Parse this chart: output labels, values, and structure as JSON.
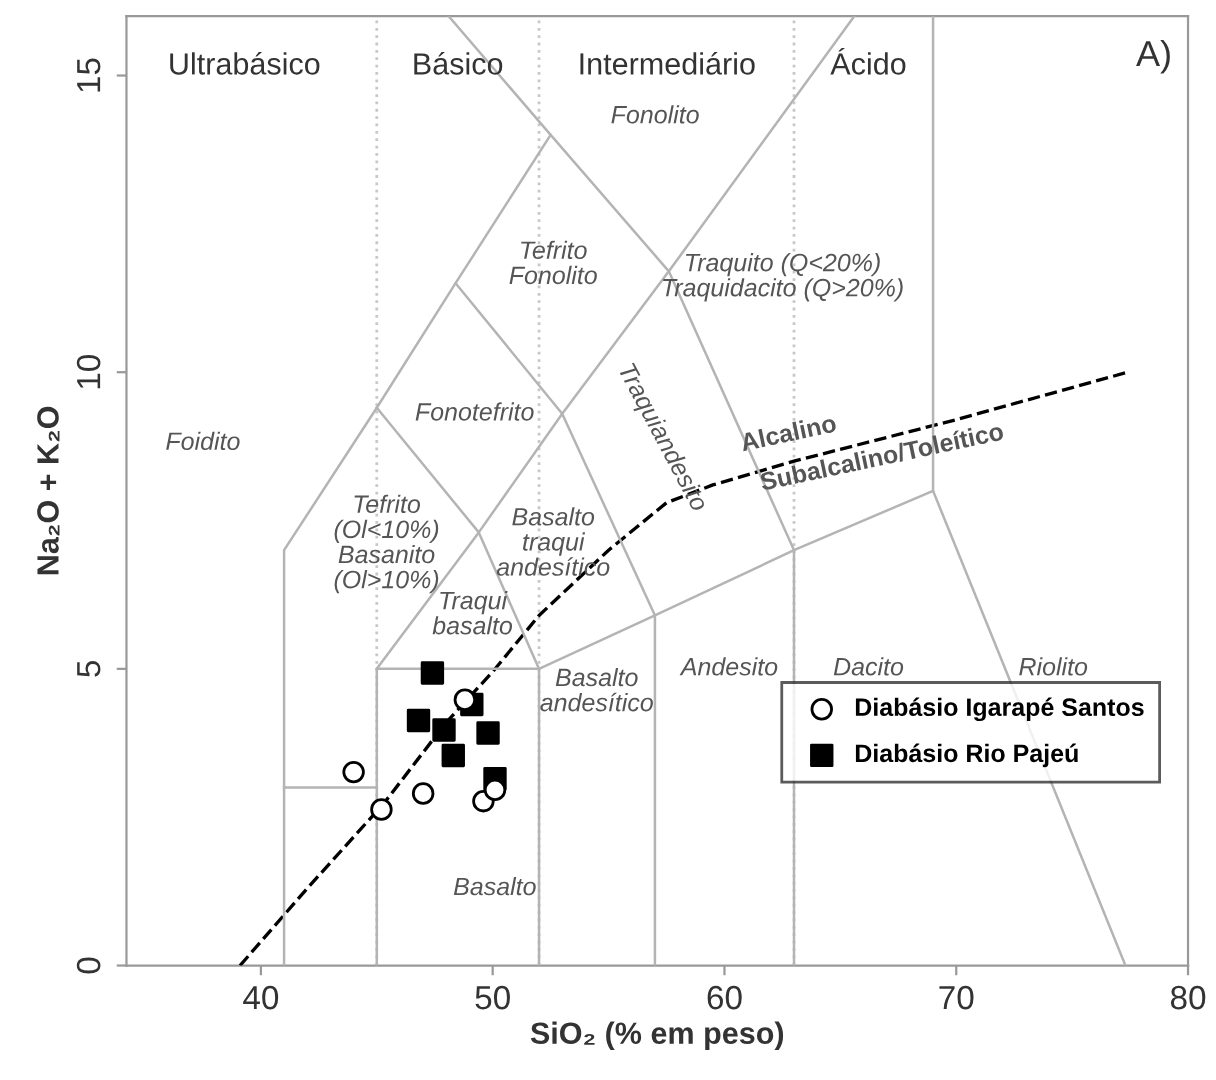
{
  "chart_data": {
    "type": "scatter",
    "xlabel": "SiO₂ (% em peso)",
    "ylabel": "Na₂O + K₂O",
    "xlim": [
      34.2,
      80
    ],
    "ylim": [
      0,
      16
    ],
    "xticks": [
      40,
      50,
      60,
      70,
      80
    ],
    "yticks": [
      0,
      5,
      10,
      15
    ],
    "grid": false,
    "legend": "lower right",
    "series": [
      {
        "name": "Diabásio Igarapé Santos",
        "color": "#000000",
        "marker": "circle",
        "x": [
          44.0,
          45.2,
          47.0,
          49.6,
          50.1,
          48.8
        ],
        "values": [
          3.26,
          2.63,
          2.9,
          2.77,
          2.96,
          4.48
        ]
      },
      {
        "name": "Diabásio Rio Pajeú",
        "color": "#000000",
        "marker": "square",
        "x": [
          47.4,
          46.8,
          47.9,
          48.3,
          49.1,
          49.8,
          50.1
        ],
        "values": [
          4.93,
          4.13,
          3.97,
          3.54,
          4.4,
          3.92,
          3.15
        ]
      },
      {
        "type": "line",
        "color": "#000000",
        "line_style": "dashed",
        "x": [
          39.1,
          42,
          45.3,
          48,
          50,
          52,
          55,
          57.5,
          59.5,
          63,
          70,
          77.4
        ],
        "values": [
          0,
          1.3,
          2.73,
          4.1,
          4.95,
          5.9,
          7.0,
          7.8,
          8.1,
          8.5,
          9.2,
          10.0
        ]
      },
      {
        "type": "line",
        "color": "#b4b4b4",
        "x": [
          41,
          41,
          45,
          48.4,
          52.5,
          48.1
        ],
        "values": [
          0,
          7,
          9.4,
          11.5,
          14,
          16
        ]
      },
      {
        "type": "line",
        "color": "#b4b4b4",
        "x": [
          41,
          45
        ],
        "values": [
          3,
          3
        ]
      },
      {
        "type": "line",
        "color": "#b4b4b4",
        "x": [
          45,
          45,
          52,
          52
        ],
        "values": [
          0,
          5,
          5,
          0
        ]
      },
      {
        "type": "line",
        "color": "#b4b4b4",
        "x": [
          52,
          57,
          57
        ],
        "values": [
          5,
          5.9,
          0
        ]
      },
      {
        "type": "line",
        "color": "#b4b4b4",
        "x": [
          57,
          63,
          63
        ],
        "values": [
          5.9,
          7,
          0
        ]
      },
      {
        "type": "line",
        "color": "#b4b4b4",
        "x": [
          63,
          69,
          77.3
        ],
        "values": [
          7,
          8,
          0
        ]
      },
      {
        "type": "line",
        "color": "#b4b4b4",
        "x": [
          69,
          69
        ],
        "values": [
          8,
          16
        ]
      },
      {
        "type": "line",
        "color": "#b4b4b4",
        "x": [
          45,
          49.4,
          53,
          57.6,
          65.6
        ],
        "values": [
          5,
          7.3,
          9.3,
          11.7,
          16
        ]
      },
      {
        "type": "line",
        "color": "#b4b4b4",
        "x": [
          45,
          49.4,
          52
        ],
        "values": [
          9.4,
          7.3,
          5
        ]
      },
      {
        "type": "line",
        "color": "#b4b4b4",
        "x": [
          48.4,
          53,
          57
        ],
        "values": [
          11.5,
          9.3,
          5.9
        ]
      },
      {
        "type": "line",
        "color": "#b4b4b4",
        "x": [
          52.5,
          57.6,
          63
        ],
        "values": [
          14,
          11.7,
          7
        ]
      }
    ],
    "ref_lines": [
      {
        "axis": "x",
        "value": 45,
        "color": "#c8c8c8",
        "line_style": "dotted"
      },
      {
        "axis": "x",
        "value": 52,
        "color": "#c8c8c8",
        "line_style": "dotted"
      },
      {
        "axis": "x",
        "value": 63,
        "color": "#c8c8c8",
        "line_style": "dotted"
      }
    ],
    "annotations": [
      "Ultrabásico",
      "Básico",
      "Intermediário",
      "Ácido",
      "A)",
      "Fonolito",
      "Tefrito\nFonolito",
      "Traquito (Q<20%)\nTraquidacito (Q>20%)",
      "Fonotefrito",
      "Foidito",
      "Tefrito\n(Ol<10%)\nBasanito\n(Ol>10%)",
      "Basalto\ntraqui\nandesítico",
      "Traquiandesito",
      "Traqui\nbasalto",
      "Basalto\nandesítico",
      "Andesito",
      "Dacito",
      "Riolito",
      "Basalto",
      "Alcalino",
      "Subalcalino/Toleítico"
    ]
  }
}
